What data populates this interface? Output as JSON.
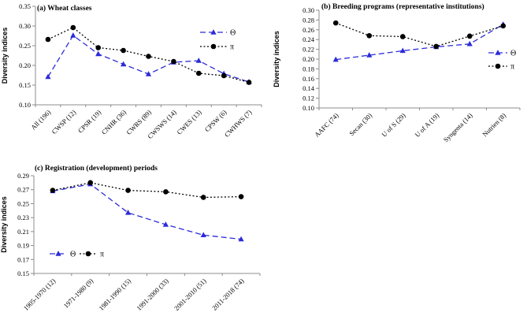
{
  "figure": {
    "background": "#ffffff"
  },
  "labels": {
    "y_axis": "Diversity indices"
  },
  "colors": {
    "theta": "#2b2bd9",
    "pi": "#000000",
    "axis": "#8c8c8c",
    "text": "#000000"
  },
  "chart_data": [
    {
      "id": "a",
      "type": "line",
      "title": "(a) Wheat classes",
      "ylabel": "Diversity indices",
      "xlabel": "",
      "ylim": [
        0.1,
        0.35
      ],
      "ytick_step": 0.05,
      "grid": false,
      "legend_position": "inside-top-right",
      "categories": [
        "All (196)",
        "CWSP (12)",
        "CPSR (19)",
        "CNHR (36)",
        "CWRS (89)",
        "CWSWS (14)",
        "CWES (13)",
        "CPSW (6)",
        "CWHWS (7)"
      ],
      "series": [
        {
          "key": "theta",
          "name": "Θ",
          "color": "#2b2bd9",
          "marker": "triangle",
          "dash": "dashed",
          "values": [
            0.171,
            0.276,
            0.229,
            0.203,
            0.178,
            0.208,
            0.212,
            0.179,
            0.158
          ]
        },
        {
          "key": "pi",
          "name": "π",
          "color": "#000000",
          "marker": "circle",
          "dash": "dotted",
          "values": [
            0.266,
            0.296,
            0.245,
            0.238,
            0.223,
            0.21,
            0.18,
            0.174,
            0.157
          ]
        }
      ]
    },
    {
      "id": "b",
      "type": "line",
      "title": "(b) Breeding programs (representative institutions)",
      "ylabel": "Diversity indices",
      "xlabel": "",
      "ylim": [
        0.1,
        0.3
      ],
      "ytick_step": 0.02,
      "grid": false,
      "legend_position": "inside-right",
      "categories": [
        "AAFC (74)",
        "Secan (30)",
        "U of S (29)",
        "U of A (19)",
        "Syngenta (14)",
        "Nutrien (8)"
      ],
      "series": [
        {
          "key": "theta",
          "name": "Θ",
          "color": "#2b2bd9",
          "marker": "triangle",
          "dash": "dashed",
          "values": [
            0.199,
            0.208,
            0.217,
            0.225,
            0.231,
            0.271
          ]
        },
        {
          "key": "pi",
          "name": "π",
          "color": "#000000",
          "marker": "circle",
          "dash": "dotted",
          "values": [
            0.274,
            0.248,
            0.246,
            0.226,
            0.247,
            0.268
          ]
        }
      ]
    },
    {
      "id": "c",
      "type": "line",
      "title": "(c) Registration (development) periods",
      "ylabel": "Diversity indices",
      "xlabel": "",
      "ylim": [
        0.15,
        0.29
      ],
      "ytick_step": 0.02,
      "grid": false,
      "legend_position": "inside-bottom-left",
      "categories": [
        "1905-1970 (12)",
        "1971-1980 (9)",
        "1981-1990 (15)",
        "1991-2000 (33)",
        "2001-2010 (51)",
        "2011-2018 (74)"
      ],
      "series": [
        {
          "key": "theta",
          "name": "Θ",
          "color": "#2b2bd9",
          "marker": "triangle",
          "dash": "dashed",
          "values": [
            0.268,
            0.278,
            0.237,
            0.22,
            0.205,
            0.199
          ]
        },
        {
          "key": "pi",
          "name": "π",
          "color": "#000000",
          "marker": "circle",
          "dash": "dotted",
          "values": [
            0.269,
            0.28,
            0.269,
            0.267,
            0.259,
            0.26
          ]
        }
      ]
    }
  ]
}
